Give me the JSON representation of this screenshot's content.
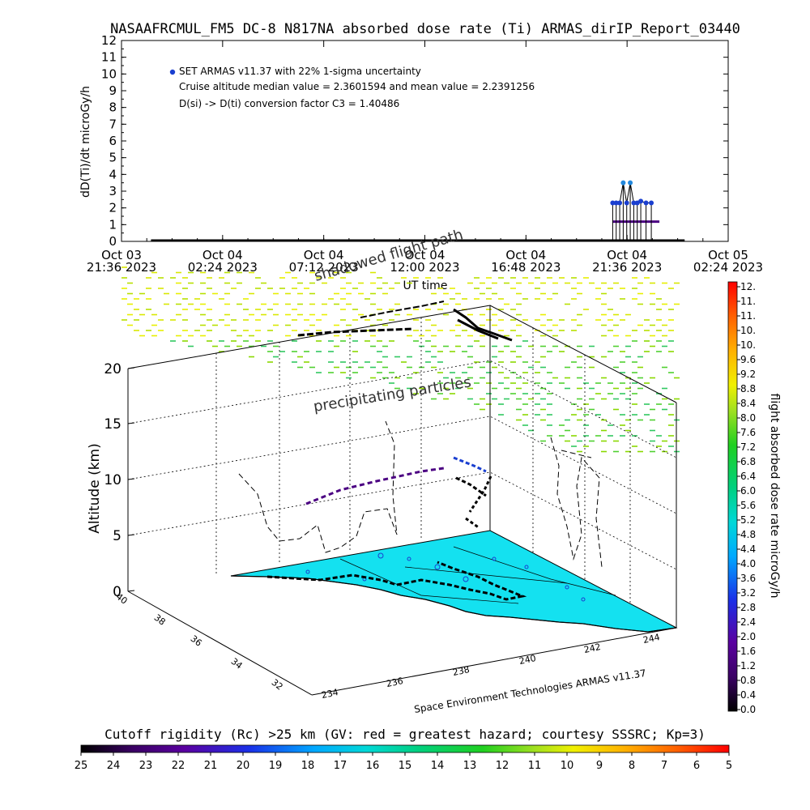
{
  "title": "NASAAFRCMUL_FM5 DC-8   N817NA absorbed dose rate (Ti) ARMAS_dirIP_Report_03440",
  "top_chart": {
    "ylabel": "dD(Ti)/dt microGy/h",
    "xlabel": "UT time",
    "legend_marker_color": "#1a3fd0",
    "legend_lines": [
      "SET ARMAS v11.37 with 22% 1-sigma uncertainty",
      "Cruise altitude median value = 2.3601594 and mean value = 2.2391256",
      "D(si) -> D(ti) conversion factor C3 = 1.40486"
    ],
    "ytick_labels": [
      "0",
      "1",
      "2",
      "3",
      "4",
      "5",
      "6",
      "7",
      "8",
      "9",
      "10",
      "11",
      "12"
    ],
    "xtick_labels": [
      {
        "line1": "Oct 03",
        "line2": "21:36 2023"
      },
      {
        "line1": "Oct 04",
        "line2": "02:24 2023"
      },
      {
        "line1": "Oct 04",
        "line2": "07:12 2023"
      },
      {
        "line1": "Oct 04",
        "line2": "12:00 2023"
      },
      {
        "line1": "Oct 04",
        "line2": "16:48 2023"
      },
      {
        "line1": "Oct 04",
        "line2": "21:36 2023"
      },
      {
        "line1": "Oct 05",
        "line2": "02:24 2023"
      }
    ]
  },
  "map3d": {
    "zlabel": "Altitude (km)",
    "ztick_labels": [
      "0",
      "5",
      "10",
      "15",
      "20"
    ],
    "lat_tick_labels": [
      "40",
      "38",
      "36",
      "34",
      "32"
    ],
    "lon_tick_labels": [
      "234",
      "236",
      "238",
      "240",
      "242",
      "244"
    ],
    "annotation_path": "shadowed flight path",
    "annotation_particles": "precipitating particles",
    "credit": "Space Environment Technologies ARMAS v11.37",
    "ocean_color": "#14e1f0"
  },
  "colorbar_right": {
    "label": "flight absorbed dose rate microGy/h",
    "tick_labels": [
      "12.",
      "11.",
      "11.",
      "10.",
      "10.",
      "9.6",
      "9.2",
      "8.8",
      "8.4",
      "8.0",
      "7.6",
      "7.2",
      "6.8",
      "6.4",
      "6.0",
      "5.6",
      "5.2",
      "4.8",
      "4.4",
      "4.0",
      "3.6",
      "3.2",
      "2.8",
      "2.4",
      "2.0",
      "1.6",
      "1.2",
      "0.8",
      "0.4",
      "0.0"
    ]
  },
  "colorbar_bottom": {
    "title": "Cutoff rigidity (Rc) >25 km (GV: red = greatest hazard; courtesy SSSRC; Kp=3)",
    "tick_labels": [
      "25",
      "24",
      "23",
      "22",
      "21",
      "20",
      "19",
      "18",
      "17",
      "16",
      "15",
      "14",
      "13",
      "12",
      "11",
      "10",
      "9",
      "8",
      "7",
      "6",
      "5"
    ]
  },
  "chart_data": {
    "type": "scatter",
    "title": "NASAAFRCMUL_FM5 DC-8   N817NA absorbed dose rate (Ti) ARMAS_dirIP_Report_03440",
    "xlabel": "UT time",
    "ylabel": "dD(Ti)/dt microGy/h",
    "xlim": [
      "2023-10-03 21:36",
      "2023-10-05 02:24"
    ],
    "ylim": [
      0,
      12
    ],
    "x_ticks": [
      "2023-10-03 21:36",
      "2023-10-04 02:24",
      "2023-10-04 07:12",
      "2023-10-04 12:00",
      "2023-10-04 16:48",
      "2023-10-04 21:36",
      "2023-10-05 02:24"
    ],
    "data_start": "2023-10-03 23:00",
    "data_end": "2023-10-05 00:20",
    "baseline_value": 0,
    "series": [
      {
        "name": "SET ARMAS v11.37 with 22% 1-sigma uncertainty",
        "x": [
          "2023-10-04 20:55",
          "2023-10-04 21:05",
          "2023-10-04 21:15",
          "2023-10-04 21:25",
          "2023-10-04 21:35",
          "2023-10-04 21:45",
          "2023-10-04 21:55",
          "2023-10-04 22:05",
          "2023-10-04 22:15",
          "2023-10-04 22:30",
          "2023-10-04 22:45"
        ],
        "y": [
          2.3,
          2.3,
          2.3,
          3.5,
          2.3,
          3.5,
          2.3,
          2.3,
          2.4,
          2.3,
          2.3
        ]
      }
    ],
    "cruise_median": 2.3601594,
    "cruise_mean": 2.2391256,
    "conversion_factor_C3": 1.40486
  }
}
